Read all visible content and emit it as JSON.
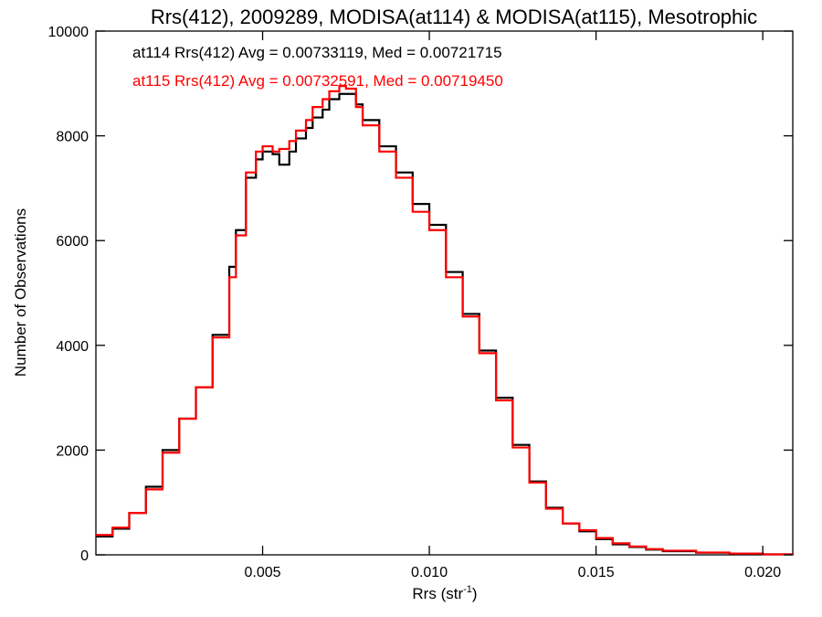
{
  "chart_data": {
    "type": "line",
    "title": "Rrs(412), 2009289, MODISA(at114) & MODISA(at115), Mesotrophic",
    "xlabel_main": "Rrs (str",
    "xlabel_sup": "-1",
    "xlabel_close": ")",
    "ylabel": "Number of Observations",
    "xlim": [
      0.0,
      0.0209
    ],
    "ylim": [
      0,
      10000
    ],
    "xticks": [
      0.005,
      0.01,
      0.015,
      0.02
    ],
    "xtick_labels": [
      "0.005",
      "0.010",
      "0.015",
      "0.020"
    ],
    "yticks": [
      0,
      2000,
      4000,
      6000,
      8000,
      10000
    ],
    "ytick_labels": [
      "0",
      "2000",
      "4000",
      "6000",
      "8000",
      "10000"
    ],
    "grid": false,
    "series": [
      {
        "id": "at114",
        "color": "#000000",
        "annotation": "at114 Rrs(412) Avg = 0.00733119, Med = 0.00721715",
        "points": [
          [
            0.0,
            350
          ],
          [
            0.0005,
            500
          ],
          [
            0.001,
            800
          ],
          [
            0.0015,
            1300
          ],
          [
            0.002,
            2000
          ],
          [
            0.0025,
            2600
          ],
          [
            0.003,
            3200
          ],
          [
            0.0035,
            4200
          ],
          [
            0.004,
            5500
          ],
          [
            0.0042,
            6200
          ],
          [
            0.0045,
            7200
          ],
          [
            0.0048,
            7550
          ],
          [
            0.005,
            7700
          ],
          [
            0.0053,
            7650
          ],
          [
            0.0055,
            7450
          ],
          [
            0.0058,
            7700
          ],
          [
            0.006,
            7950
          ],
          [
            0.0063,
            8150
          ],
          [
            0.0065,
            8350
          ],
          [
            0.0068,
            8500
          ],
          [
            0.007,
            8700
          ],
          [
            0.0073,
            8800
          ],
          [
            0.0075,
            8800
          ],
          [
            0.0078,
            8600
          ],
          [
            0.008,
            8300
          ],
          [
            0.0085,
            7800
          ],
          [
            0.009,
            7300
          ],
          [
            0.0095,
            6700
          ],
          [
            0.01,
            6300
          ],
          [
            0.0105,
            5400
          ],
          [
            0.011,
            4600
          ],
          [
            0.0115,
            3900
          ],
          [
            0.012,
            3000
          ],
          [
            0.0125,
            2100
          ],
          [
            0.013,
            1400
          ],
          [
            0.0135,
            900
          ],
          [
            0.014,
            600
          ],
          [
            0.0145,
            450
          ],
          [
            0.015,
            300
          ],
          [
            0.0155,
            200
          ],
          [
            0.016,
            150
          ],
          [
            0.0165,
            100
          ],
          [
            0.017,
            70
          ],
          [
            0.018,
            40
          ],
          [
            0.019,
            20
          ],
          [
            0.02,
            10
          ],
          [
            0.0209,
            0
          ]
        ]
      },
      {
        "id": "at115",
        "color": "#ff0000",
        "annotation": "at115 Rrs(412) Avg = 0.00732591, Med = 0.00719450",
        "points": [
          [
            0.0,
            380
          ],
          [
            0.0005,
            520
          ],
          [
            0.001,
            800
          ],
          [
            0.0015,
            1250
          ],
          [
            0.002,
            1950
          ],
          [
            0.0025,
            2600
          ],
          [
            0.003,
            3200
          ],
          [
            0.0035,
            4150
          ],
          [
            0.004,
            5300
          ],
          [
            0.0042,
            6100
          ],
          [
            0.0045,
            7300
          ],
          [
            0.0048,
            7700
          ],
          [
            0.005,
            7800
          ],
          [
            0.0053,
            7700
          ],
          [
            0.0055,
            7750
          ],
          [
            0.0058,
            7900
          ],
          [
            0.006,
            8100
          ],
          [
            0.0063,
            8300
          ],
          [
            0.0065,
            8550
          ],
          [
            0.0068,
            8700
          ],
          [
            0.007,
            8850
          ],
          [
            0.0073,
            8950
          ],
          [
            0.0075,
            8900
          ],
          [
            0.0078,
            8550
          ],
          [
            0.008,
            8200
          ],
          [
            0.0085,
            7700
          ],
          [
            0.009,
            7200
          ],
          [
            0.0095,
            6550
          ],
          [
            0.01,
            6200
          ],
          [
            0.0105,
            5300
          ],
          [
            0.011,
            4550
          ],
          [
            0.0115,
            3850
          ],
          [
            0.012,
            2950
          ],
          [
            0.0125,
            2050
          ],
          [
            0.013,
            1380
          ],
          [
            0.0135,
            880
          ],
          [
            0.014,
            600
          ],
          [
            0.0145,
            470
          ],
          [
            0.015,
            320
          ],
          [
            0.0155,
            220
          ],
          [
            0.016,
            160
          ],
          [
            0.0165,
            110
          ],
          [
            0.017,
            80
          ],
          [
            0.018,
            45
          ],
          [
            0.019,
            25
          ],
          [
            0.02,
            10
          ],
          [
            0.0209,
            0
          ]
        ]
      }
    ]
  }
}
